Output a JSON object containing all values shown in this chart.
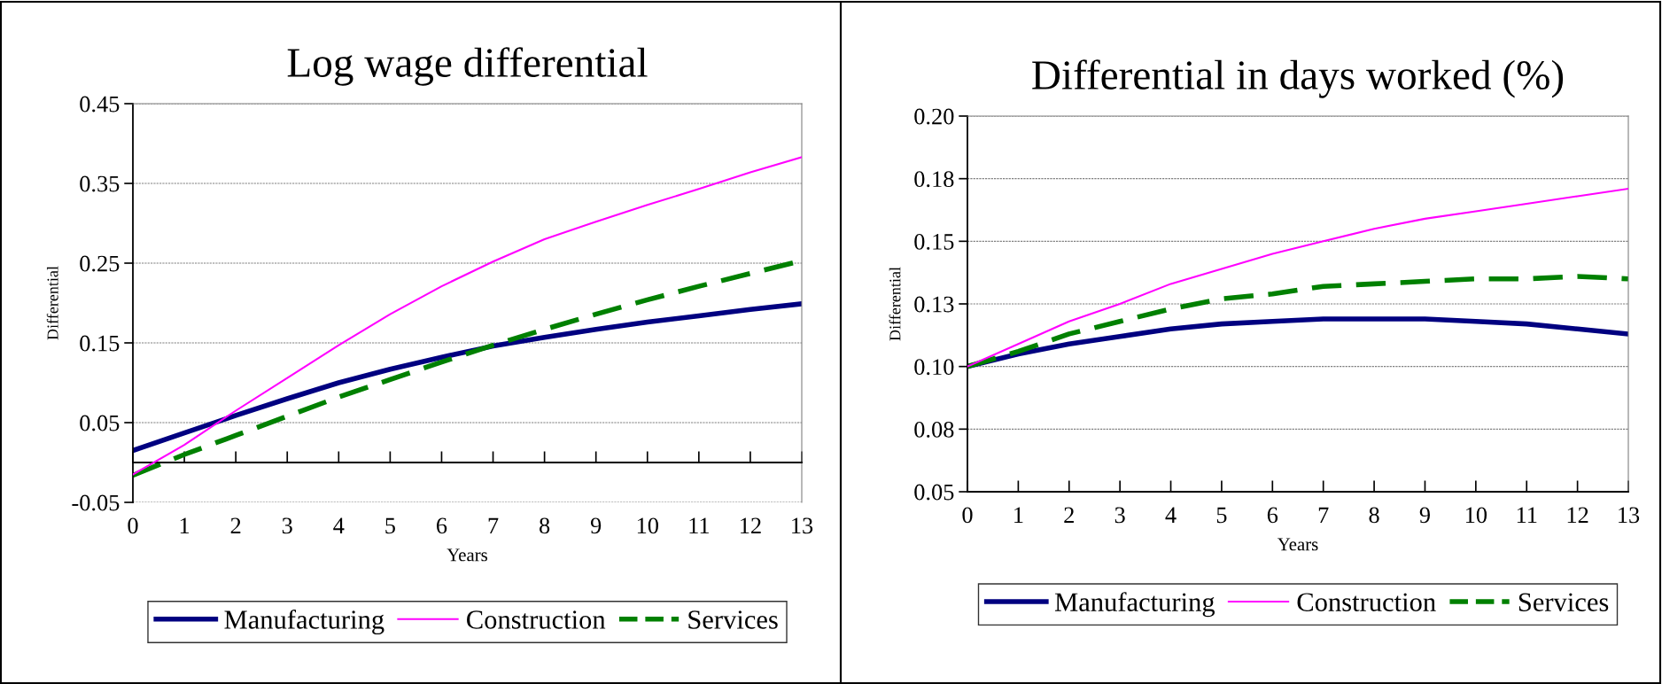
{
  "chart_data": [
    {
      "type": "line",
      "title": "Log wage differential",
      "xlabel": "Years",
      "ylabel": "Differential",
      "x": [
        0,
        1,
        2,
        3,
        4,
        5,
        6,
        7,
        8,
        9,
        10,
        11,
        12,
        13
      ],
      "xlim": [
        0,
        13
      ],
      "xticks": [
        0,
        1,
        2,
        3,
        4,
        5,
        6,
        7,
        8,
        9,
        10,
        11,
        12,
        13
      ],
      "ylim": [
        -0.05,
        0.45
      ],
      "yticks": [
        -0.05,
        0.05,
        0.15,
        0.25,
        0.35,
        0.45
      ],
      "grid": "y",
      "legend": "bottom",
      "series": [
        {
          "name": "Manufacturing",
          "color": "#000080",
          "line_style": "solid",
          "values": [
            0.015,
            0.037,
            0.059,
            0.08,
            0.1,
            0.117,
            0.132,
            0.146,
            0.157,
            0.167,
            0.176,
            0.184,
            0.192,
            0.199
          ]
        },
        {
          "name": "Construction",
          "color": "#ff00ff",
          "line_style": "solid",
          "values": [
            -0.015,
            0.022,
            0.065,
            0.106,
            0.147,
            0.186,
            0.221,
            0.252,
            0.28,
            0.302,
            0.323,
            0.343,
            0.364,
            0.383
          ]
        },
        {
          "name": "Services",
          "color": "#008000",
          "line_style": "dashed",
          "values": [
            -0.016,
            0.01,
            0.034,
            0.058,
            0.082,
            0.104,
            0.126,
            0.147,
            0.167,
            0.186,
            0.204,
            0.221,
            0.237,
            0.253
          ]
        }
      ]
    },
    {
      "type": "line",
      "title": "Differential in days worked (%)",
      "xlabel": "Years",
      "ylabel": "Differential",
      "x": [
        0,
        1,
        2,
        3,
        4,
        5,
        6,
        7,
        8,
        9,
        10,
        11,
        12,
        13
      ],
      "xlim": [
        0,
        13
      ],
      "xticks": [
        0,
        1,
        2,
        3,
        4,
        5,
        6,
        7,
        8,
        9,
        10,
        11,
        12,
        13
      ],
      "ylim": [
        0.05,
        0.2
      ],
      "yticks": [
        {
          "value": 0.05,
          "label": "0.05"
        },
        {
          "value": 0.075,
          "label": "0.08"
        },
        {
          "value": 0.1,
          "label": "0.10"
        },
        {
          "value": 0.125,
          "label": "0.13"
        },
        {
          "value": 0.15,
          "label": "0.15"
        },
        {
          "value": 0.175,
          "label": "0.18"
        },
        {
          "value": 0.2,
          "label": "0.20"
        }
      ],
      "grid": "y",
      "legend": "bottom",
      "series": [
        {
          "name": "Manufacturing",
          "color": "#000080",
          "line_style": "solid",
          "values": [
            0.1,
            0.105,
            0.109,
            0.112,
            0.115,
            0.117,
            0.118,
            0.119,
            0.119,
            0.119,
            0.118,
            0.117,
            0.115,
            0.113
          ]
        },
        {
          "name": "Construction",
          "color": "#ff00ff",
          "line_style": "solid",
          "values": [
            0.1,
            0.109,
            0.118,
            0.125,
            0.133,
            0.139,
            0.145,
            0.15,
            0.155,
            0.159,
            0.162,
            0.165,
            0.168,
            0.171
          ]
        },
        {
          "name": "Services",
          "color": "#008000",
          "line_style": "dashed",
          "values": [
            0.1,
            0.106,
            0.113,
            0.118,
            0.123,
            0.127,
            0.129,
            0.132,
            0.133,
            0.134,
            0.135,
            0.135,
            0.136,
            0.135
          ]
        }
      ]
    }
  ]
}
